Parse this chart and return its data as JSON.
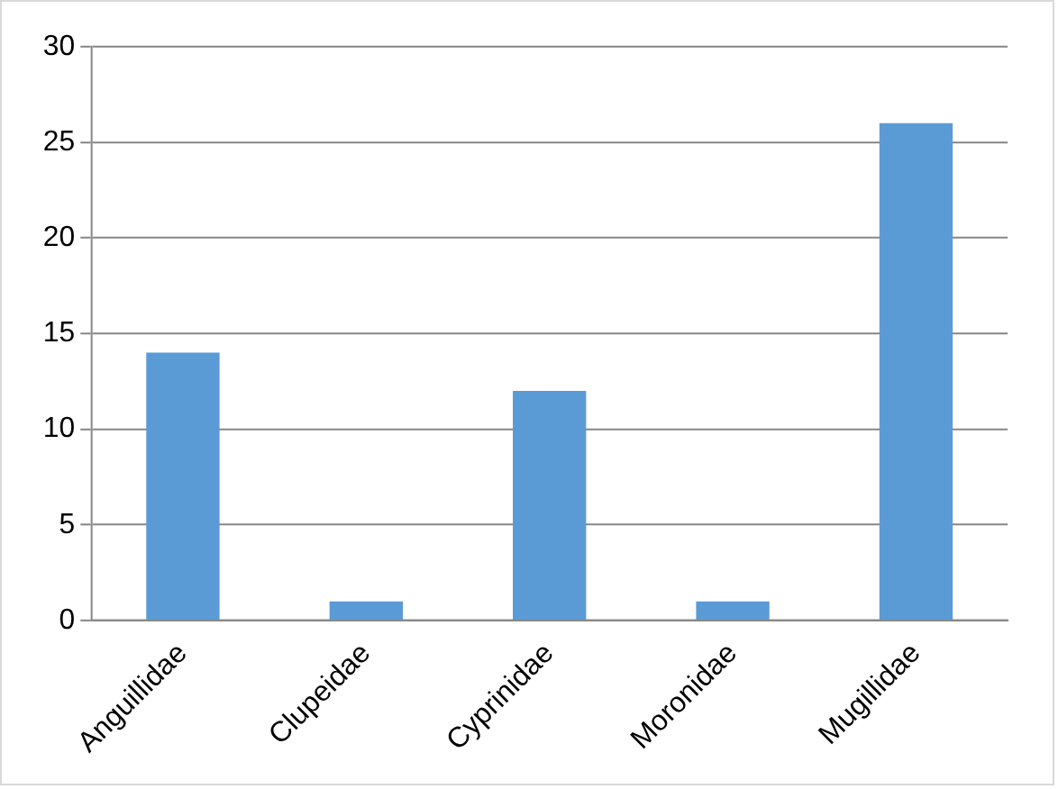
{
  "chart_data": {
    "type": "bar",
    "categories": [
      "Anguillidae",
      "Clupeidae",
      "Cyprinidae",
      "Moronidae",
      "Mugillidae"
    ],
    "values": [
      14,
      1,
      12,
      1,
      26
    ],
    "color": "#5b9bd5",
    "ylim": [
      0,
      30
    ],
    "yticks": [
      0,
      5,
      10,
      15,
      20,
      25,
      30
    ],
    "grid": "y",
    "legend": false
  }
}
